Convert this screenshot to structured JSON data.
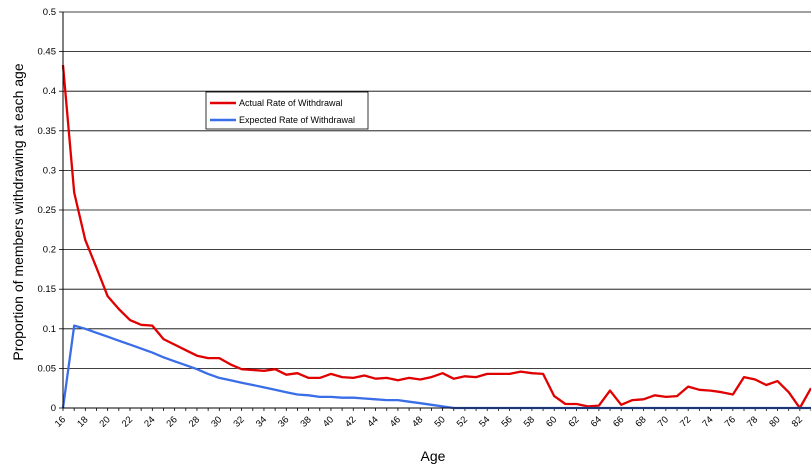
{
  "chart_data": {
    "type": "line",
    "title": "",
    "xlabel": "Age",
    "ylabel": "Proportion of members withdrawing at each age",
    "xlim": [
      16,
      83
    ],
    "ylim": [
      0,
      0.5
    ],
    "y_ticks": [
      0,
      0.05,
      0.1,
      0.15,
      0.2,
      0.25,
      0.3,
      0.35,
      0.4,
      0.45,
      0.5
    ],
    "y_tick_labels": [
      "0",
      "0.05",
      "0.1",
      "0.15",
      "0.2",
      "0.25",
      "0.3",
      "0.35",
      "0.4",
      "0.45",
      "0.5"
    ],
    "x_tick_labels": [
      "16",
      "18",
      "20",
      "22",
      "24",
      "26",
      "28",
      "30",
      "32",
      "34",
      "36",
      "38",
      "40",
      "42",
      "44",
      "46",
      "48",
      "50",
      "52",
      "54",
      "56",
      "58",
      "60",
      "62",
      "64",
      "66",
      "68",
      "70",
      "72",
      "74",
      "76",
      "78",
      "80",
      "82"
    ],
    "grid": "horizontal",
    "legend_position": "upper-middle",
    "x": [
      16,
      17,
      18,
      19,
      20,
      21,
      22,
      23,
      24,
      25,
      26,
      27,
      28,
      29,
      30,
      31,
      32,
      33,
      34,
      35,
      36,
      37,
      38,
      39,
      40,
      41,
      42,
      43,
      44,
      45,
      46,
      47,
      48,
      49,
      50,
      51,
      52,
      53,
      54,
      55,
      56,
      57,
      58,
      59,
      60,
      61,
      62,
      63,
      64,
      65,
      66,
      67,
      68,
      69,
      70,
      71,
      72,
      73,
      74,
      75,
      76,
      77,
      78,
      79,
      80,
      81,
      82,
      83
    ],
    "series": [
      {
        "name": "Actual Rate of Withdrawal",
        "color": "#e00000",
        "values": [
          0.433,
          0.272,
          0.212,
          0.177,
          0.141,
          0.125,
          0.111,
          0.105,
          0.104,
          0.087,
          0.08,
          0.073,
          0.066,
          0.063,
          0.063,
          0.055,
          0.049,
          0.048,
          0.047,
          0.049,
          0.042,
          0.044,
          0.038,
          0.038,
          0.043,
          0.039,
          0.038,
          0.041,
          0.037,
          0.038,
          0.035,
          0.038,
          0.036,
          0.039,
          0.044,
          0.037,
          0.04,
          0.039,
          0.043,
          0.043,
          0.043,
          0.046,
          0.044,
          0.043,
          0.015,
          0.005,
          0.005,
          0.002,
          0.003,
          0.022,
          0.004,
          0.01,
          0.011,
          0.016,
          0.014,
          0.015,
          0.027,
          0.023,
          0.022,
          0.02,
          0.017,
          0.039,
          0.036,
          0.029,
          0.034,
          0.02,
          0.0,
          0.025
        ]
      },
      {
        "name": "Expected Rate of Withdrawal",
        "color": "#3a6ee8",
        "values": [
          0.0,
          0.104,
          0.1,
          0.095,
          0.09,
          0.085,
          0.08,
          0.075,
          0.07,
          0.064,
          0.059,
          0.054,
          0.049,
          0.043,
          0.038,
          0.035,
          0.032,
          0.029,
          0.026,
          0.023,
          0.02,
          0.017,
          0.016,
          0.014,
          0.014,
          0.013,
          0.013,
          0.012,
          0.011,
          0.01,
          0.01,
          0.008,
          0.006,
          0.004,
          0.002,
          0.0,
          0.0,
          0.0,
          0.0,
          0.0,
          0.0,
          0.0,
          0.0,
          0.0,
          0.0,
          0.0,
          0.0,
          0.0,
          0.0,
          0.0,
          0.0,
          0.0,
          0.0,
          0.0,
          0.0,
          0.0,
          0.0,
          0.0,
          0.0,
          0.0,
          0.0,
          0.0,
          0.0,
          0.0,
          0.0,
          0.0,
          0.0,
          0.0
        ]
      }
    ]
  }
}
